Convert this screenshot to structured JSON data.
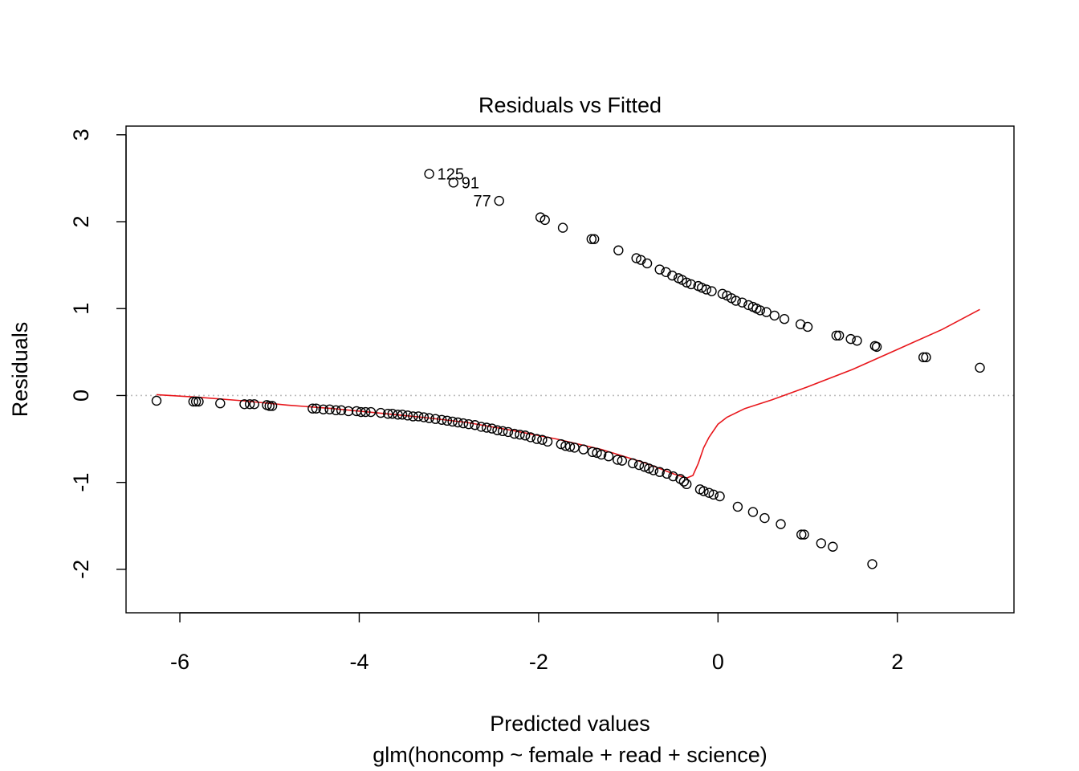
{
  "chart_data": {
    "type": "scatter",
    "title": "Residuals vs Fitted",
    "xlabel": "Predicted values",
    "subtitle": "glm(honcomp ~ female + read + science)",
    "ylabel": "Residuals",
    "xlim": [
      -6.6,
      3.3
    ],
    "ylim": [
      -2.5,
      3.1
    ],
    "xticks": [
      -6,
      -4,
      -2,
      0,
      2
    ],
    "yticks": [
      -2,
      -1,
      0,
      1,
      2,
      3
    ],
    "reference_line_y": 0,
    "colors": {
      "points": "#000000",
      "smooth": "#e8161b",
      "refline": "#bdbdbd"
    },
    "points_upper": [
      [
        -3.22,
        2.55
      ],
      [
        -2.95,
        2.45
      ],
      [
        -2.44,
        2.24
      ],
      [
        -1.98,
        2.05
      ],
      [
        -1.93,
        2.02
      ],
      [
        -1.73,
        1.93
      ],
      [
        -1.41,
        1.8
      ],
      [
        -1.38,
        1.8
      ],
      [
        -1.11,
        1.67
      ],
      [
        -0.91,
        1.58
      ],
      [
        -0.86,
        1.56
      ],
      [
        -0.79,
        1.52
      ],
      [
        -0.65,
        1.45
      ],
      [
        -0.58,
        1.42
      ],
      [
        -0.51,
        1.38
      ],
      [
        -0.44,
        1.35
      ],
      [
        -0.4,
        1.33
      ],
      [
        -0.35,
        1.3
      ],
      [
        -0.3,
        1.28
      ],
      [
        -0.22,
        1.26
      ],
      [
        -0.18,
        1.24
      ],
      [
        -0.13,
        1.22
      ],
      [
        -0.07,
        1.2
      ],
      [
        0.05,
        1.17
      ],
      [
        0.1,
        1.15
      ],
      [
        0.15,
        1.12
      ],
      [
        0.2,
        1.09
      ],
      [
        0.27,
        1.07
      ],
      [
        0.34,
        1.04
      ],
      [
        0.39,
        1.02
      ],
      [
        0.43,
        1.0
      ],
      [
        0.47,
        0.98
      ],
      [
        0.54,
        0.96
      ],
      [
        0.63,
        0.92
      ],
      [
        0.74,
        0.88
      ],
      [
        0.92,
        0.82
      ],
      [
        1.0,
        0.79
      ],
      [
        1.32,
        0.69
      ],
      [
        1.35,
        0.69
      ],
      [
        1.48,
        0.65
      ],
      [
        1.55,
        0.63
      ],
      [
        1.75,
        0.57
      ],
      [
        1.77,
        0.56
      ],
      [
        2.29,
        0.44
      ],
      [
        2.32,
        0.44
      ],
      [
        2.92,
        0.32
      ]
    ],
    "points_lower": [
      [
        -6.26,
        -0.06
      ],
      [
        -5.85,
        -0.07
      ],
      [
        -5.82,
        -0.07
      ],
      [
        -5.79,
        -0.07
      ],
      [
        -5.55,
        -0.09
      ],
      [
        -5.28,
        -0.1
      ],
      [
        -5.22,
        -0.1
      ],
      [
        -5.17,
        -0.1
      ],
      [
        -5.03,
        -0.11
      ],
      [
        -5.0,
        -0.12
      ],
      [
        -4.97,
        -0.12
      ],
      [
        -4.52,
        -0.15
      ],
      [
        -4.48,
        -0.15
      ],
      [
        -4.4,
        -0.16
      ],
      [
        -4.33,
        -0.16
      ],
      [
        -4.26,
        -0.17
      ],
      [
        -4.2,
        -0.17
      ],
      [
        -4.12,
        -0.18
      ],
      [
        -4.03,
        -0.18
      ],
      [
        -3.98,
        -0.19
      ],
      [
        -3.93,
        -0.19
      ],
      [
        -3.87,
        -0.19
      ],
      [
        -3.76,
        -0.2
      ],
      [
        -3.68,
        -0.21
      ],
      [
        -3.63,
        -0.21
      ],
      [
        -3.57,
        -0.22
      ],
      [
        -3.52,
        -0.22
      ],
      [
        -3.46,
        -0.23
      ],
      [
        -3.4,
        -0.24
      ],
      [
        -3.34,
        -0.24
      ],
      [
        -3.28,
        -0.25
      ],
      [
        -3.22,
        -0.26
      ],
      [
        -3.15,
        -0.27
      ],
      [
        -3.08,
        -0.28
      ],
      [
        -3.02,
        -0.29
      ],
      [
        -2.96,
        -0.3
      ],
      [
        -2.9,
        -0.31
      ],
      [
        -2.84,
        -0.32
      ],
      [
        -2.78,
        -0.33
      ],
      [
        -2.71,
        -0.34
      ],
      [
        -2.64,
        -0.36
      ],
      [
        -2.58,
        -0.37
      ],
      [
        -2.52,
        -0.38
      ],
      [
        -2.46,
        -0.4
      ],
      [
        -2.4,
        -0.41
      ],
      [
        -2.34,
        -0.42
      ],
      [
        -2.27,
        -0.44
      ],
      [
        -2.21,
        -0.45
      ],
      [
        -2.15,
        -0.46
      ],
      [
        -2.09,
        -0.48
      ],
      [
        -2.02,
        -0.5
      ],
      [
        -1.96,
        -0.51
      ],
      [
        -1.9,
        -0.53
      ],
      [
        -1.75,
        -0.56
      ],
      [
        -1.7,
        -0.58
      ],
      [
        -1.65,
        -0.59
      ],
      [
        -1.6,
        -0.6
      ],
      [
        -1.5,
        -0.62
      ],
      [
        -1.4,
        -0.65
      ],
      [
        -1.35,
        -0.66
      ],
      [
        -1.3,
        -0.68
      ],
      [
        -1.22,
        -0.7
      ],
      [
        -1.12,
        -0.74
      ],
      [
        -1.07,
        -0.75
      ],
      [
        -0.95,
        -0.78
      ],
      [
        -0.88,
        -0.8
      ],
      [
        -0.82,
        -0.82
      ],
      [
        -0.77,
        -0.84
      ],
      [
        -0.72,
        -0.86
      ],
      [
        -0.65,
        -0.88
      ],
      [
        -0.57,
        -0.9
      ],
      [
        -0.5,
        -0.93
      ],
      [
        -0.42,
        -0.96
      ],
      [
        -0.38,
        -0.99
      ],
      [
        -0.35,
        -1.02
      ],
      [
        -0.2,
        -1.08
      ],
      [
        -0.16,
        -1.1
      ],
      [
        -0.1,
        -1.12
      ],
      [
        -0.05,
        -1.14
      ],
      [
        0.02,
        -1.16
      ],
      [
        0.22,
        -1.28
      ],
      [
        0.39,
        -1.34
      ],
      [
        0.52,
        -1.41
      ],
      [
        0.7,
        -1.48
      ],
      [
        0.93,
        -1.6
      ],
      [
        0.96,
        -1.6
      ],
      [
        1.15,
        -1.7
      ],
      [
        1.28,
        -1.74
      ],
      [
        1.72,
        -1.94
      ]
    ],
    "point_labels": [
      {
        "text": "125",
        "x": -3.22,
        "y": 2.55
      },
      {
        "text": "91",
        "x": -2.95,
        "y": 2.45
      },
      {
        "text": "77",
        "x": -2.44,
        "y": 2.24
      }
    ],
    "smooth_line": [
      [
        -6.26,
        0.01
      ],
      [
        -5.8,
        -0.02
      ],
      [
        -5.3,
        -0.06
      ],
      [
        -4.8,
        -0.11
      ],
      [
        -4.3,
        -0.15
      ],
      [
        -3.8,
        -0.2
      ],
      [
        -3.3,
        -0.25
      ],
      [
        -2.8,
        -0.31
      ],
      [
        -2.3,
        -0.4
      ],
      [
        -1.8,
        -0.5
      ],
      [
        -1.3,
        -0.62
      ],
      [
        -0.8,
        -0.78
      ],
      [
        -0.5,
        -0.9
      ],
      [
        -0.35,
        -0.95
      ],
      [
        -0.28,
        -0.92
      ],
      [
        -0.22,
        -0.78
      ],
      [
        -0.16,
        -0.6
      ],
      [
        -0.1,
        -0.48
      ],
      [
        0.0,
        -0.33
      ],
      [
        0.1,
        -0.25
      ],
      [
        0.3,
        -0.15
      ],
      [
        0.6,
        -0.05
      ],
      [
        1.0,
        0.1
      ],
      [
        1.5,
        0.3
      ],
      [
        2.0,
        0.53
      ],
      [
        2.5,
        0.76
      ],
      [
        2.92,
        0.99
      ]
    ]
  }
}
